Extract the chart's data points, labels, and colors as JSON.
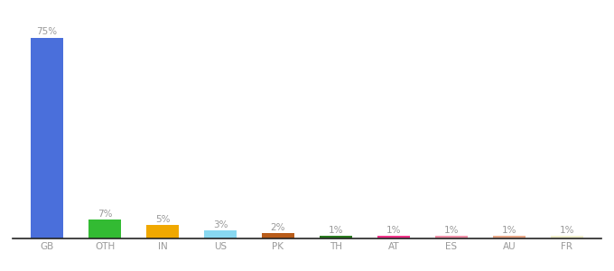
{
  "categories": [
    "GB",
    "OTH",
    "IN",
    "US",
    "PK",
    "TH",
    "AT",
    "ES",
    "AU",
    "FR"
  ],
  "values": [
    75,
    7,
    5,
    3,
    2,
    1,
    1,
    1,
    1,
    1
  ],
  "labels": [
    "75%",
    "7%",
    "5%",
    "3%",
    "2%",
    "1%",
    "1%",
    "1%",
    "1%",
    "1%"
  ],
  "bar_colors": [
    "#4a6fdb",
    "#33bb33",
    "#f0a800",
    "#88d8f0",
    "#b85c1a",
    "#2a7a20",
    "#ee3388",
    "#f090a8",
    "#e8a888",
    "#f0eecc"
  ],
  "ylim": [
    0,
    82
  ],
  "background_color": "#ffffff",
  "label_color": "#999999",
  "label_fontsize": 7.5,
  "tick_fontsize": 7.5,
  "bar_width": 0.55,
  "figsize": [
    6.8,
    3.0
  ],
  "dpi": 100
}
